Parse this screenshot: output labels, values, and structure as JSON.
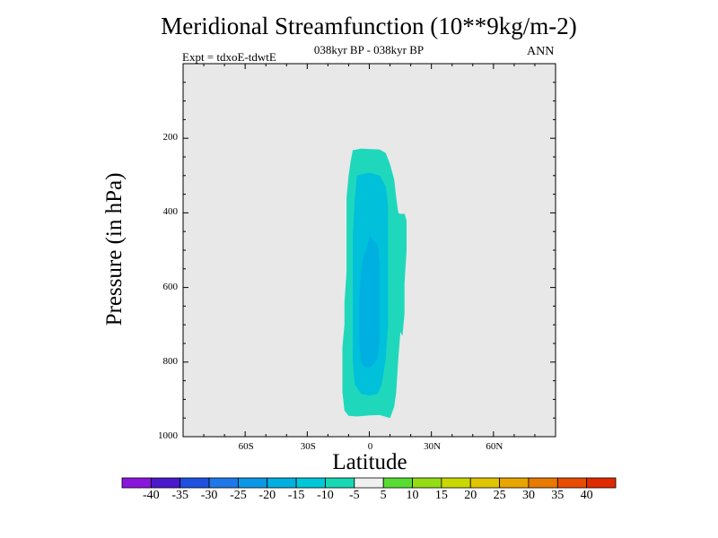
{
  "chart_data": {
    "type": "contour",
    "title": "Meridional Streamfunction (10**9kg/m-2)",
    "subtitle": "038kyr BP - 038kyr BP",
    "experiment_label": "Expt = tdxoE-tdwtE",
    "season": "ANN",
    "xlabel": "Latitude",
    "ylabel": "Pressure (in hPa)",
    "xlim": [
      -90,
      90
    ],
    "ylim": [
      1000,
      0
    ],
    "x_ticks": [
      {
        "value": -60,
        "label": "60S"
      },
      {
        "value": -30,
        "label": "30S"
      },
      {
        "value": 0,
        "label": "0"
      },
      {
        "value": 30,
        "label": "30N"
      },
      {
        "value": 60,
        "label": "60N"
      }
    ],
    "y_ticks": [
      {
        "value": 200,
        "label": "200"
      },
      {
        "value": 400,
        "label": "400"
      },
      {
        "value": 600,
        "label": "600"
      },
      {
        "value": 800,
        "label": "800"
      },
      {
        "value": 1000,
        "label": "1000"
      }
    ],
    "background_color": "#e8e8e8",
    "contour_regions": [
      {
        "level": "-10 to -5",
        "color": "#1fd8bc",
        "points": [
          [
            -8,
            232
          ],
          [
            -4,
            228
          ],
          [
            5,
            230
          ],
          [
            8,
            240
          ],
          [
            10,
            270
          ],
          [
            12,
            310
          ],
          [
            13,
            360
          ],
          [
            14,
            400
          ],
          [
            15,
            403
          ],
          [
            17,
            402
          ],
          [
            18,
            420
          ],
          [
            18,
            500
          ],
          [
            17,
            590
          ],
          [
            17,
            670
          ],
          [
            16,
            730
          ],
          [
            15,
            720
          ],
          [
            14,
            790
          ],
          [
            13,
            880
          ],
          [
            12,
            920
          ],
          [
            11,
            935
          ],
          [
            10,
            950
          ],
          [
            5,
            942
          ],
          [
            0,
            943
          ],
          [
            -6,
            946
          ],
          [
            -10,
            944
          ],
          [
            -12,
            930
          ],
          [
            -13,
            880
          ],
          [
            -13,
            820
          ],
          [
            -13,
            760
          ],
          [
            -12,
            700
          ],
          [
            -12,
            640
          ],
          [
            -11,
            560
          ],
          [
            -11,
            480
          ],
          [
            -11,
            420
          ],
          [
            -11,
            360
          ],
          [
            -10,
            300
          ],
          [
            -9,
            260
          ]
        ]
      },
      {
        "level": "-15 to -10",
        "color": "#00c0da",
        "points": [
          [
            -6,
            300
          ],
          [
            0,
            292
          ],
          [
            5,
            300
          ],
          [
            8,
            330
          ],
          [
            9,
            380
          ],
          [
            9,
            440
          ],
          [
            9,
            520
          ],
          [
            9,
            600
          ],
          [
            9,
            700
          ],
          [
            8,
            790
          ],
          [
            6,
            860
          ],
          [
            4,
            885
          ],
          [
            0,
            890
          ],
          [
            -4,
            885
          ],
          [
            -7,
            860
          ],
          [
            -8,
            800
          ],
          [
            -8,
            700
          ],
          [
            -8,
            580
          ],
          [
            -8,
            460
          ],
          [
            -7,
            360
          ]
        ]
      },
      {
        "level": "-20 to -15",
        "color": "#00b0e0",
        "points": [
          [
            0,
            462
          ],
          [
            4,
            485
          ],
          [
            5,
            540
          ],
          [
            5,
            640
          ],
          [
            5,
            740
          ],
          [
            4,
            790
          ],
          [
            1,
            812
          ],
          [
            -2,
            815
          ],
          [
            -4,
            800
          ],
          [
            -5,
            740
          ],
          [
            -5,
            640
          ],
          [
            -4,
            560
          ],
          [
            -3,
            520
          ],
          [
            -1,
            490
          ]
        ]
      }
    ],
    "colorbar": {
      "ticks": [
        "-40",
        "-35",
        "-30",
        "-25",
        "-20",
        "-15",
        "-10",
        "-5",
        "5",
        "10",
        "15",
        "20",
        "25",
        "30",
        "35",
        "40"
      ],
      "colors": [
        "#8a16dc",
        "#4a19cc",
        "#2050e0",
        "#1e78e8",
        "#0a98e6",
        "#00b0e0",
        "#00c8d8",
        "#18d8b4",
        "#f0f0f0",
        "#58dc34",
        "#94dc14",
        "#c8d800",
        "#e0c400",
        "#e8a400",
        "#e87a00",
        "#e84c00",
        "#e02a00"
      ]
    }
  }
}
